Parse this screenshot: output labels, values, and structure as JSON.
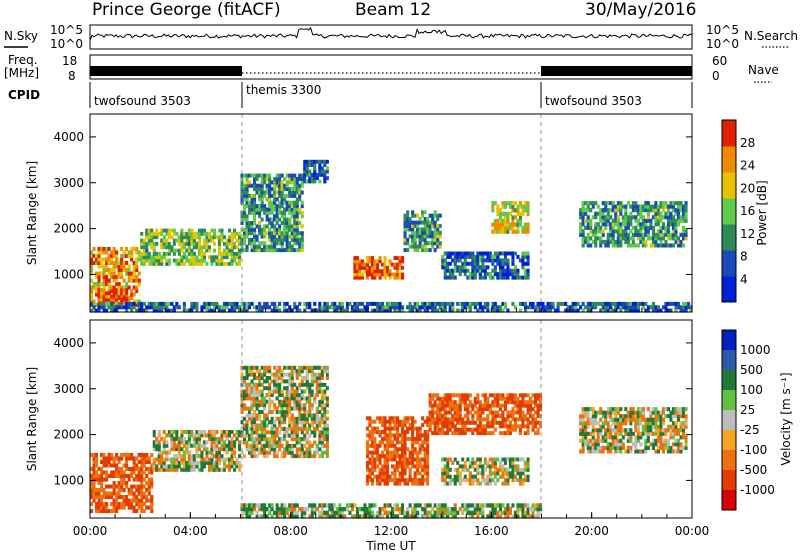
{
  "header": {
    "station": "Prince George (fitACF)",
    "beam": "Beam 12",
    "date": "30/May/2016"
  },
  "top_panels": {
    "nsky_label": "N.Sky",
    "nsearch_label": "N.Search",
    "noise_ticks": [
      "10^5",
      "10^0"
    ],
    "freq_label_1": "Freq.",
    "freq_label_2": "[MHz]",
    "freq_ticks": [
      "18",
      "8"
    ],
    "nave_label": "Nave",
    "nave_ticks": [
      "60",
      "0"
    ],
    "cpid_label": "CPID",
    "modes": [
      {
        "name": "twofsound 3503",
        "start_hour": 0,
        "end_hour": 6
      },
      {
        "name": "themis 3300",
        "start_hour": 6,
        "end_hour": 18
      },
      {
        "name": "twofsound 3503",
        "start_hour": 18,
        "end_hour": 24
      }
    ]
  },
  "colors": {
    "power_scale": [
      "#0020d8",
      "#1a4ab8",
      "#2e8b57",
      "#5fc94a",
      "#e6c200",
      "#f08a00",
      "#e02000"
    ],
    "velocity_scale": [
      "#0020c0",
      "#2a5aa8",
      "#1f7a3a",
      "#60c040",
      "#c0c0c0",
      "#f5a623",
      "#f07010",
      "#e23d00",
      "#d80000"
    ],
    "ground_scatter": "#bdbdbd"
  },
  "chart_data": [
    {
      "type": "heatmap",
      "name": "Power",
      "ylabel": "Slant Range [km]",
      "ylim": [
        180,
        4500
      ],
      "xlim_hours": [
        0,
        24
      ],
      "yticks": [
        1000,
        2000,
        3000,
        4000
      ],
      "colorbar": {
        "label": "Power [dB]",
        "ticks": [
          4,
          8,
          12,
          16,
          20,
          24,
          28
        ],
        "range": [
          0,
          32
        ]
      },
      "regions": [
        {
          "t0": 0.0,
          "t1": 2.0,
          "r0": 300,
          "r1": 1600,
          "level": 24
        },
        {
          "t0": 0.3,
          "t1": 1.5,
          "r0": 350,
          "r1": 700,
          "level": 28
        },
        {
          "t0": 2.0,
          "t1": 6.0,
          "r0": 1200,
          "r1": 2000,
          "level": 16
        },
        {
          "t0": 6.0,
          "t1": 8.5,
          "r0": 1500,
          "r1": 3200,
          "level": 12
        },
        {
          "t0": 8.5,
          "t1": 9.5,
          "r0": 3000,
          "r1": 3500,
          "level": 8
        },
        {
          "t0": 10.5,
          "t1": 12.5,
          "r0": 900,
          "r1": 1400,
          "level": 28
        },
        {
          "t0": 12.5,
          "t1": 14.0,
          "r0": 1500,
          "r1": 2400,
          "level": 12
        },
        {
          "t0": 14.0,
          "t1": 17.5,
          "r0": 900,
          "r1": 1500,
          "level": 8
        },
        {
          "t0": 16.0,
          "t1": 17.5,
          "r0": 1900,
          "r1": 2600,
          "level": 20
        },
        {
          "t0": 19.5,
          "t1": 23.8,
          "r0": 1600,
          "r1": 2600,
          "level": 12
        },
        {
          "t0": 0.0,
          "t1": 24.0,
          "r0": 180,
          "r1": 400,
          "level": 8
        }
      ]
    },
    {
      "type": "heatmap",
      "name": "Velocity",
      "xlabel": "Time UT",
      "ylabel": "Slant Range [km]",
      "ylim": [
        180,
        4500
      ],
      "xlim_hours": [
        0,
        24
      ],
      "yticks": [
        1000,
        2000,
        3000,
        4000
      ],
      "xticks": [
        "00:00",
        "04:00",
        "08:00",
        "12:00",
        "16:00",
        "20:00",
        "00:00"
      ],
      "colorbar": {
        "label": "Velocity [m s⁻¹]",
        "ticks": [
          1000,
          500,
          100,
          25,
          -25,
          -100,
          -500,
          -1000
        ]
      },
      "regions": [
        {
          "t0": 0.0,
          "t1": 2.5,
          "r0": 300,
          "r1": 1600,
          "level": -300
        },
        {
          "t0": 2.5,
          "t1": 6.0,
          "r0": 1200,
          "r1": 2100,
          "level": 0
        },
        {
          "t0": 6.0,
          "t1": 9.5,
          "r0": 1500,
          "r1": 3500,
          "level": 0
        },
        {
          "t0": 11.0,
          "t1": 13.5,
          "r0": 900,
          "r1": 2400,
          "level": -300
        },
        {
          "t0": 13.5,
          "t1": 18.0,
          "r0": 2000,
          "r1": 2900,
          "level": -300
        },
        {
          "t0": 14.0,
          "t1": 17.5,
          "r0": 900,
          "r1": 1500,
          "level": 0
        },
        {
          "t0": 19.5,
          "t1": 23.8,
          "r0": 1600,
          "r1": 2600,
          "level": 0
        },
        {
          "t0": 6.0,
          "t1": 18.0,
          "r0": 180,
          "r1": 500,
          "level": 60
        }
      ]
    }
  ]
}
